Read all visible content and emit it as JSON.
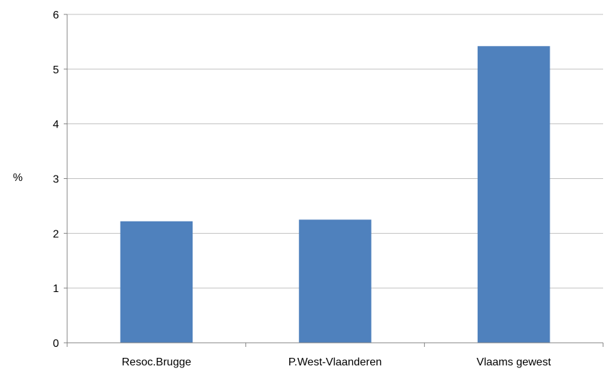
{
  "chart_data": {
    "type": "bar",
    "title": "",
    "xlabel": "",
    "ylabel": "%",
    "categories": [
      "Resoc.Brugge",
      "P.West-Vlaanderen",
      "Vlaams gewest"
    ],
    "values": [
      2.22,
      2.25,
      5.42
    ],
    "ylim": [
      0,
      6
    ],
    "yticks": [
      0,
      1,
      2,
      3,
      4,
      5,
      6
    ],
    "ytick_labels": [
      "0",
      "1",
      "2",
      "3",
      "4",
      "5",
      "6"
    ],
    "grid": true,
    "legend": "none",
    "colors": {
      "bar": "#4F81BD",
      "grid": "#BFBFBF",
      "axis": "#808080"
    }
  }
}
